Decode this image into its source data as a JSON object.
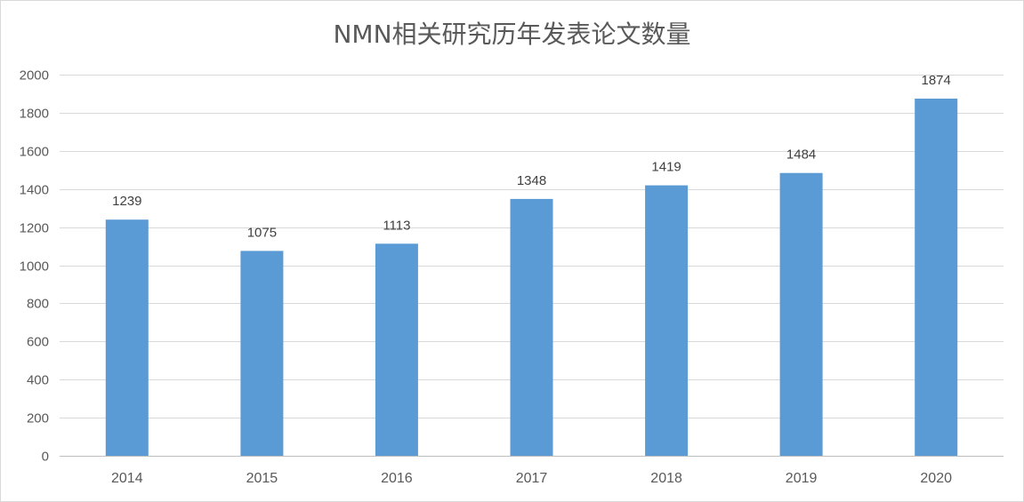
{
  "chart_data": {
    "type": "bar",
    "title": "NMN相关研究历年发表论文数量",
    "xlabel": "",
    "ylabel": "",
    "categories": [
      "2014",
      "2015",
      "2016",
      "2017",
      "2018",
      "2019",
      "2020"
    ],
    "values": [
      1239,
      1075,
      1113,
      1348,
      1419,
      1484,
      1874
    ],
    "data_labels": [
      "1239",
      "1075",
      "1113",
      "1348",
      "1419",
      "1484",
      "1874"
    ],
    "ylim": [
      0,
      2000
    ],
    "yticks": [
      "0",
      "200",
      "400",
      "600",
      "800",
      "1000",
      "1200",
      "1400",
      "1600",
      "1800",
      "2000"
    ],
    "grid": true,
    "legend": "none",
    "colors": {
      "bar": "#5b9bd5",
      "grid": "#d9d9d9",
      "text": "#595959"
    }
  }
}
